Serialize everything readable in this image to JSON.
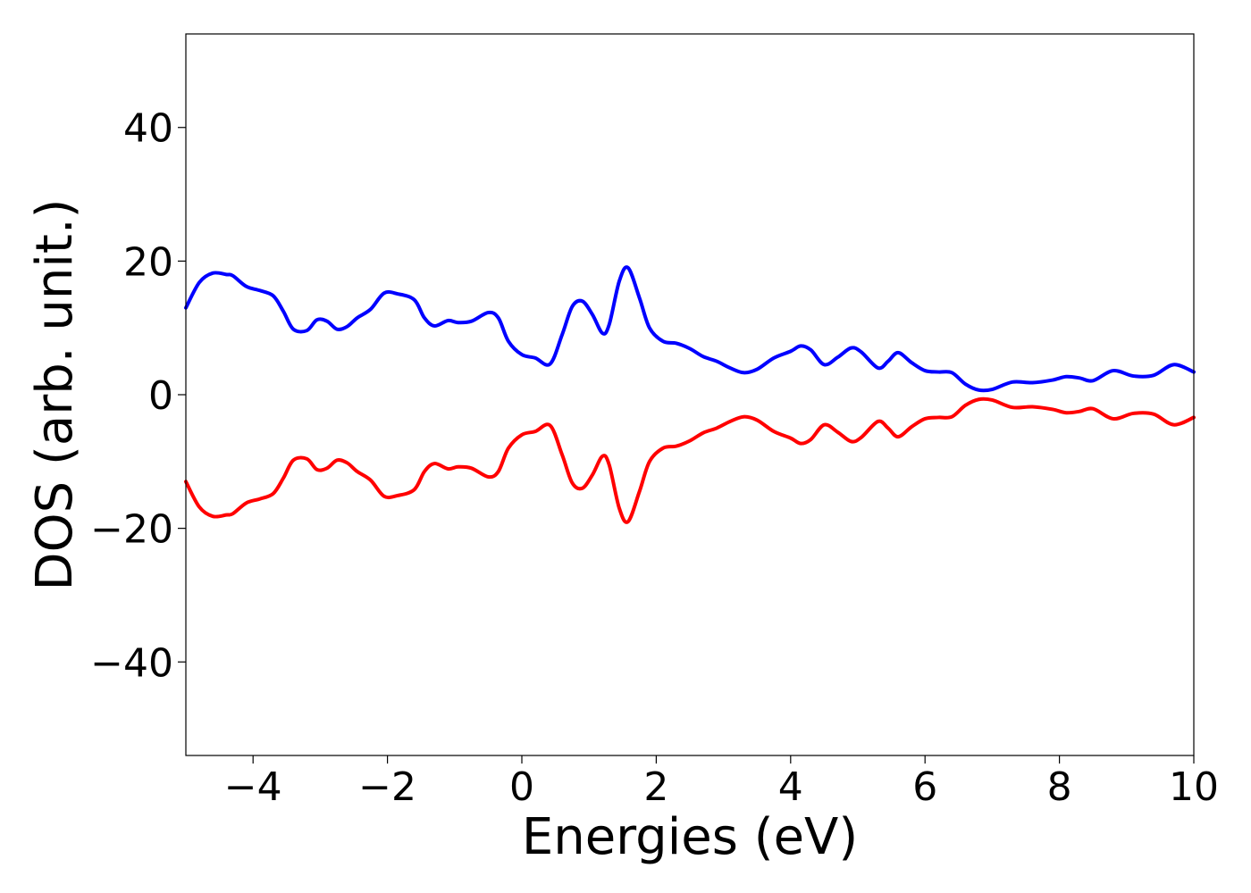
{
  "chart_data": {
    "type": "line",
    "title": "",
    "xlabel": "Energies (eV)",
    "ylabel": "DOS (arb. unit.)",
    "xlim": [
      -5,
      10
    ],
    "ylim": [
      -54,
      54
    ],
    "xticks": [
      -4,
      -2,
      0,
      2,
      4,
      6,
      8,
      10
    ],
    "xtick_labels": [
      "−4",
      "−2",
      "0",
      "2",
      "4",
      "6",
      "8",
      "10"
    ],
    "yticks": [
      -40,
      -20,
      0,
      20,
      40
    ],
    "ytick_labels": [
      "−40",
      "−20",
      "0",
      "20",
      "40"
    ],
    "grid": false,
    "legend": "none",
    "series": [
      {
        "color": "#0000ff",
        "x": [
          -5.0,
          -4.8,
          -4.6,
          -4.4,
          -4.3,
          -4.1,
          -3.9,
          -3.7,
          -3.55,
          -3.4,
          -3.2,
          -3.05,
          -2.9,
          -2.75,
          -2.6,
          -2.45,
          -2.25,
          -2.05,
          -1.85,
          -1.6,
          -1.45,
          -1.3,
          -1.1,
          -0.95,
          -0.75,
          -0.5,
          -0.35,
          -0.2,
          0.0,
          0.2,
          0.42,
          0.6,
          0.75,
          0.9,
          1.05,
          1.2,
          1.3,
          1.45,
          1.58,
          1.75,
          1.9,
          2.1,
          2.3,
          2.5,
          2.7,
          2.9,
          3.1,
          3.3,
          3.5,
          3.75,
          4.0,
          4.15,
          4.3,
          4.5,
          4.7,
          4.9,
          5.05,
          5.3,
          5.45,
          5.6,
          5.8,
          6.0,
          6.2,
          6.4,
          6.6,
          6.8,
          7.0,
          7.3,
          7.6,
          7.9,
          8.1,
          8.3,
          8.5,
          8.8,
          9.1,
          9.4,
          9.7,
          10.0
        ],
        "y": [
          13.0,
          16.8,
          18.2,
          18.0,
          17.8,
          16.2,
          15.6,
          14.8,
          12.5,
          9.8,
          9.6,
          11.2,
          11.0,
          9.8,
          10.2,
          11.5,
          12.8,
          15.2,
          15.1,
          14.2,
          11.5,
          10.3,
          11.1,
          10.8,
          11.0,
          12.3,
          11.5,
          8.0,
          6.0,
          5.5,
          4.6,
          9.0,
          13.2,
          14.0,
          12.0,
          9.2,
          10.5,
          17.0,
          19.0,
          14.5,
          10.0,
          8.0,
          7.7,
          6.9,
          5.7,
          5.0,
          4.0,
          3.3,
          3.8,
          5.5,
          6.5,
          7.3,
          6.7,
          4.5,
          5.6,
          7.0,
          6.4,
          4.0,
          5.0,
          6.3,
          4.8,
          3.6,
          3.4,
          3.3,
          1.6,
          0.7,
          0.8,
          1.9,
          1.8,
          2.2,
          2.7,
          2.5,
          2.1,
          3.6,
          2.8,
          2.9,
          4.5,
          3.4
        ]
      },
      {
        "color": "#ff0000",
        "x": [
          -5.0,
          -4.8,
          -4.6,
          -4.4,
          -4.3,
          -4.1,
          -3.9,
          -3.7,
          -3.55,
          -3.4,
          -3.2,
          -3.05,
          -2.9,
          -2.75,
          -2.6,
          -2.45,
          -2.25,
          -2.05,
          -1.85,
          -1.6,
          -1.45,
          -1.3,
          -1.1,
          -0.95,
          -0.75,
          -0.5,
          -0.35,
          -0.2,
          0.0,
          0.2,
          0.42,
          0.6,
          0.75,
          0.9,
          1.05,
          1.2,
          1.3,
          1.45,
          1.58,
          1.75,
          1.9,
          2.1,
          2.3,
          2.5,
          2.7,
          2.9,
          3.1,
          3.3,
          3.5,
          3.75,
          4.0,
          4.15,
          4.3,
          4.5,
          4.7,
          4.9,
          5.05,
          5.3,
          5.45,
          5.6,
          5.8,
          6.0,
          6.2,
          6.4,
          6.6,
          6.8,
          7.0,
          7.3,
          7.6,
          7.9,
          8.1,
          8.3,
          8.5,
          8.8,
          9.1,
          9.4,
          9.7,
          10.0
        ],
        "y": [
          -13.0,
          -16.8,
          -18.2,
          -18.0,
          -17.8,
          -16.2,
          -15.6,
          -14.8,
          -12.5,
          -9.8,
          -9.6,
          -11.2,
          -11.0,
          -9.8,
          -10.2,
          -11.5,
          -12.8,
          -15.2,
          -15.1,
          -14.2,
          -11.5,
          -10.3,
          -11.1,
          -10.8,
          -11.0,
          -12.3,
          -11.5,
          -8.0,
          -6.0,
          -5.5,
          -4.6,
          -9.0,
          -13.2,
          -14.0,
          -12.0,
          -9.2,
          -10.5,
          -17.0,
          -19.0,
          -14.5,
          -10.0,
          -8.0,
          -7.7,
          -6.9,
          -5.7,
          -5.0,
          -4.0,
          -3.3,
          -3.8,
          -5.5,
          -6.5,
          -7.3,
          -6.7,
          -4.5,
          -5.6,
          -7.0,
          -6.4,
          -4.0,
          -5.0,
          -6.3,
          -4.8,
          -3.6,
          -3.4,
          -3.3,
          -1.6,
          -0.7,
          -0.8,
          -1.9,
          -1.8,
          -2.2,
          -2.7,
          -2.5,
          -2.1,
          -3.6,
          -2.8,
          -2.9,
          -4.5,
          -3.4
        ]
      }
    ]
  }
}
